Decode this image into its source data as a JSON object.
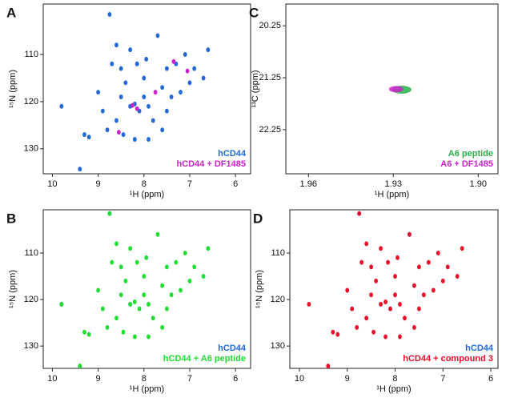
{
  "chart_data": [
    {
      "type": "scatter",
      "panel_label": "A",
      "x_label": "¹H (ppm)",
      "y_label": "¹⁵N (ppm)",
      "xlim": [
        10.2,
        5.67
      ],
      "ylim": [
        135.3,
        99.3
      ],
      "xticks": [
        10,
        9,
        8,
        7,
        6
      ],
      "yticks": [
        110,
        120,
        130
      ],
      "legend": "lower right",
      "series": [
        {
          "name": "hCD44",
          "color": "#2469d6",
          "x": [
            9.4,
            9.8,
            9.3,
            8.75,
            8.7,
            8.5,
            8.3,
            8.2,
            8.1,
            8.0,
            7.9,
            8.4,
            8.6,
            8.45,
            8.2,
            7.7,
            7.5,
            7.3,
            7.1,
            6.9,
            6.6,
            7.0,
            7.2,
            7.6,
            8.0,
            8.3,
            8.5,
            7.8,
            7.5,
            8.9,
            9.0,
            9.2,
            8.8,
            7.9,
            7.6,
            8.15,
            7.95,
            8.6,
            7.4,
            6.7
          ],
          "values": [
            134.3,
            121,
            127,
            101.5,
            112,
            119,
            121,
            120.5,
            122,
            119,
            121,
            116,
            124,
            127,
            128,
            106,
            113,
            112,
            110,
            113,
            109,
            116,
            118,
            117,
            115,
            109,
            113,
            124,
            122,
            122,
            118,
            127.5,
            126,
            128,
            126,
            112,
            111,
            108,
            119,
            115
          ]
        },
        {
          "name": "hCD44 + DF1485",
          "color": "#cc22cc",
          "x": [
            8.25,
            8.15,
            7.05,
            7.75,
            8.55,
            7.35
          ],
          "values": [
            120.8,
            121.5,
            113.5,
            118,
            126.5,
            111.5
          ]
        }
      ]
    },
    {
      "type": "scatter",
      "panel_label": "B",
      "x_label": "¹H (ppm)",
      "y_label": "¹⁵N (ppm)",
      "xlim": [
        10.2,
        5.67
      ],
      "ylim": [
        134.8,
        100.7
      ],
      "xticks": [
        10,
        9,
        8,
        7,
        6
      ],
      "yticks": [
        110,
        120,
        130
      ],
      "legend": "lower right",
      "series": [
        {
          "name": "hCD44",
          "color": "#2469d6",
          "x": [
            9.4,
            9.8,
            8.75,
            8.3
          ],
          "values": [
            134.3,
            121,
            101.5,
            121
          ]
        },
        {
          "name": "hCD44 + A6 peptide",
          "color": "#22dd33",
          "x": [
            9.4,
            9.8,
            9.3,
            8.75,
            8.7,
            8.5,
            8.3,
            8.2,
            8.1,
            8.0,
            7.9,
            8.4,
            8.6,
            8.45,
            8.2,
            7.7,
            7.5,
            7.3,
            7.1,
            6.9,
            6.6,
            7.0,
            7.2,
            7.6,
            8.0,
            8.3,
            8.5,
            7.8,
            7.5,
            8.9,
            9.0,
            9.2,
            8.8,
            7.9,
            7.6,
            8.15,
            7.95,
            8.6,
            7.4,
            6.7
          ],
          "values": [
            134.3,
            121,
            127,
            101.5,
            112,
            119,
            121,
            120.5,
            122,
            119,
            121,
            116,
            124,
            127,
            128,
            106,
            113,
            112,
            110,
            113,
            109,
            116,
            118,
            117,
            115,
            109,
            113,
            124,
            122,
            122,
            118,
            127.5,
            126,
            128,
            126,
            112,
            111,
            108,
            119,
            115
          ]
        }
      ]
    },
    {
      "type": "scatter",
      "panel_label": "C",
      "x_label": "¹H (ppm)",
      "y_label": "¹³C (ppm)",
      "xlim": [
        1.968,
        1.893
      ],
      "ylim": [
        23.1,
        19.83
      ],
      "xticks": [
        1.96,
        1.93,
        {
          "value": 1.9,
          "label": "1.90"
        }
      ],
      "yticks": [
        20.25,
        21.25,
        22.25
      ],
      "legend": "lower right",
      "series": [
        {
          "name": "A6 peptide",
          "color": "#2ab04a",
          "x": [
            1.927
          ],
          "values": [
            21.48
          ]
        },
        {
          "name": "A6 + DF1485",
          "color": "#cc22cc",
          "x": [
            1.929
          ],
          "values": [
            21.47
          ]
        }
      ]
    },
    {
      "type": "scatter",
      "panel_label": "D",
      "x_label": "¹H (ppm)",
      "y_label": "¹⁵N (ppm)",
      "xlim": [
        10.2,
        5.85
      ],
      "ylim": [
        134.8,
        100.7
      ],
      "xticks": [
        10,
        9,
        8,
        7,
        6
      ],
      "yticks": [
        110,
        120,
        130
      ],
      "legend": "lower right",
      "series": [
        {
          "name": "hCD44",
          "color": "#2469d6",
          "x": [
            9.4,
            8.75,
            7.7
          ],
          "values": [
            134.3,
            101.5,
            106
          ]
        },
        {
          "name": "hCD44 + compound 3",
          "color": "#e8102a",
          "x": [
            9.4,
            9.8,
            9.3,
            8.75,
            8.7,
            8.5,
            8.3,
            8.2,
            8.1,
            8.0,
            7.9,
            8.4,
            8.6,
            8.45,
            8.2,
            7.7,
            7.5,
            7.3,
            7.1,
            6.9,
            6.6,
            7.0,
            7.2,
            7.6,
            8.0,
            8.3,
            8.5,
            7.8,
            7.5,
            8.9,
            9.0,
            9.2,
            8.8,
            7.9,
            7.6,
            8.15,
            7.95,
            8.6,
            7.4,
            6.7
          ],
          "values": [
            134.3,
            121,
            127,
            101.5,
            112,
            119,
            121,
            120.5,
            122,
            119,
            121,
            116,
            124,
            127,
            128,
            106,
            113,
            112,
            110,
            113,
            109,
            116,
            118,
            117,
            115,
            109,
            113,
            124,
            122,
            122,
            118,
            127.5,
            126,
            128,
            126,
            112,
            111,
            108,
            119,
            115
          ]
        }
      ]
    }
  ]
}
